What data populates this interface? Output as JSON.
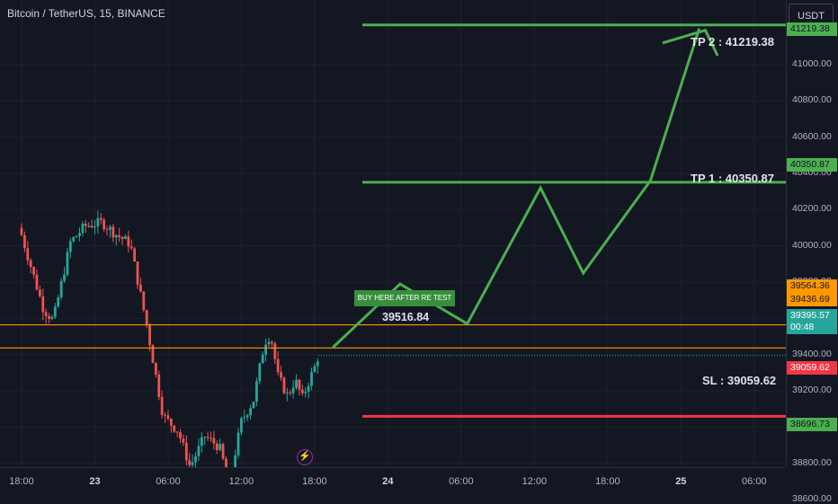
{
  "header": {
    "title": "Bitcoin / TetherUS, 15, BINANCE",
    "currency": "USDT"
  },
  "price_axis": {
    "ticks": [
      "41219.38",
      "41000.00",
      "40800.00",
      "40600.00",
      "40400.00",
      "40200.00",
      "40000.00",
      "39800.00",
      "39600.00",
      "39400.00",
      "39200.00",
      "39000.00",
      "38800.00",
      "38600.00"
    ],
    "tick_values": [
      41219.38,
      41000,
      40800,
      40600,
      40400,
      40200,
      40000,
      39800,
      39600,
      39400,
      39200,
      39000,
      38800,
      38600
    ]
  },
  "time_axis": {
    "labels": [
      "18:00",
      "23",
      "06:00",
      "12:00",
      "18:00",
      "24",
      "06:00",
      "12:00",
      "18:00",
      "25",
      "06:00"
    ],
    "hours": [
      0,
      6,
      12,
      18,
      24,
      30,
      36,
      42,
      48,
      54,
      60
    ],
    "bold": [
      false,
      true,
      false,
      false,
      false,
      true,
      false,
      false,
      false,
      true,
      false
    ]
  },
  "levels": {
    "tp2": {
      "price": 41219.38,
      "badge": "41219.38",
      "label": "TP 2 : 41219.38",
      "color": "#4caf50"
    },
    "tp1": {
      "price": 40350.87,
      "badge": "40350.87",
      "label": "TP 1 : 40350.87",
      "color": "#4caf50"
    },
    "resistance": {
      "price": 39564.36,
      "badge": "39564.36",
      "color": "#ff9800"
    },
    "support": {
      "price": 39436.69,
      "badge": "39436.69",
      "color": "#ff9800"
    },
    "sl": {
      "price": 39059.62,
      "badge": "39059.62",
      "label": "SL : 39059.62",
      "color": "#f23645"
    },
    "base": {
      "price": 38696.73,
      "badge": "38696.73",
      "color": "#4caf50"
    }
  },
  "current_price": {
    "value": "39395.57",
    "countdown": "00:48",
    "color": "#26a69a"
  },
  "buy_label": "BUY HERE AFTER RE TEST",
  "entry_label": "39516.84",
  "flash_icon": "⚡",
  "projection": [
    {
      "h": 25.5,
      "p": 39440
    },
    {
      "h": 31,
      "p": 39790
    },
    {
      "h": 36.5,
      "p": 39570
    },
    {
      "h": 42.5,
      "p": 40320
    },
    {
      "h": 46,
      "p": 39850
    },
    {
      "h": 51.5,
      "p": 40360
    },
    {
      "h": 55.5,
      "p": 41200
    }
  ],
  "arrowhead": {
    "tip": {
      "h": 56,
      "p": 41190
    },
    "left": {
      "h": 52.5,
      "p": 41120
    },
    "right": {
      "h": 57,
      "p": 41050
    }
  },
  "colors": {
    "up": "#26a69a",
    "down": "#ef5350",
    "projection": "#4caf50"
  }
}
